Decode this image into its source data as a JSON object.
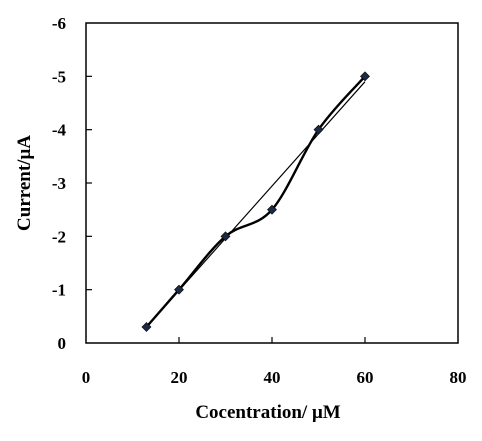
{
  "chart_data": {
    "type": "scatter",
    "xlabel": "Cocentration/ μM",
    "ylabel": "Current/μA",
    "xlim": [
      0,
      80
    ],
    "ylim": [
      0,
      -6
    ],
    "x_ticks": [
      0,
      20,
      40,
      60,
      80
    ],
    "y_ticks": [
      0,
      -1,
      -2,
      -3,
      -4,
      -5,
      -6
    ],
    "x_tick_labels": [
      "0",
      "20",
      "40",
      "60",
      "80"
    ],
    "y_tick_labels": [
      "0",
      "-1",
      "-2",
      "-3",
      "-4",
      "-5",
      "-6"
    ],
    "grid": false,
    "series": [
      {
        "x": [
          13,
          20,
          30,
          40,
          50,
          60
        ],
        "y": [
          -0.3,
          -1.0,
          -2.0,
          -2.5,
          -4.0,
          -5.0
        ],
        "marker": "diamond",
        "connect": "smooth",
        "color": "#000000"
      }
    ],
    "trendline": {
      "x": [
        13,
        60
      ],
      "y": [
        -0.3,
        -4.9
      ],
      "color": "#000000"
    }
  }
}
